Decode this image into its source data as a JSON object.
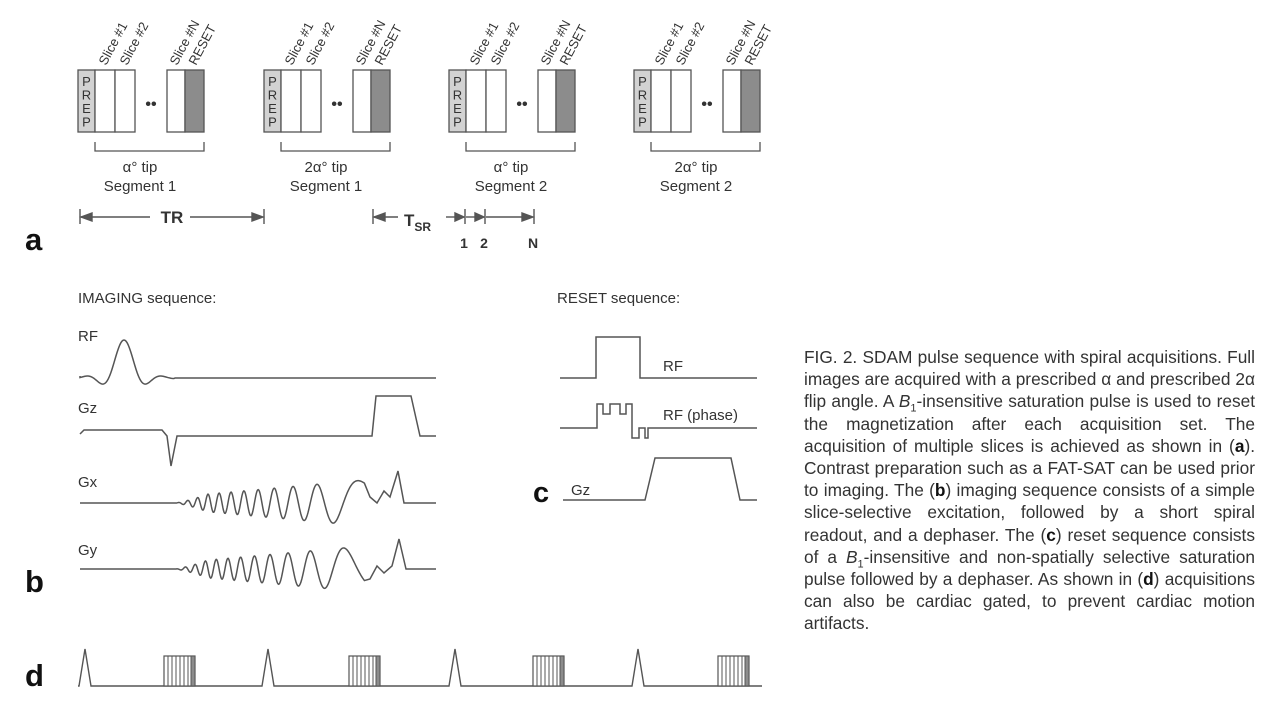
{
  "figure": {
    "panel_a": {
      "panel_label": "a",
      "groups": [
        {
          "prep": "PREP",
          "slices": [
            "Slice #1",
            "Slice #2",
            "Slice #N"
          ],
          "reset": "RESET",
          "tip": "α° tip",
          "segment": "Segment 1"
        },
        {
          "prep": "PREP",
          "slices": [
            "Slice #1",
            "Slice #2",
            "Slice #N"
          ],
          "reset": "RESET",
          "tip": "2α° tip",
          "segment": "Segment 1"
        },
        {
          "prep": "PREP",
          "slices": [
            "Slice #1",
            "Slice #2",
            "Slice #N"
          ],
          "reset": "RESET",
          "tip": "α° tip",
          "segment": "Segment 2"
        },
        {
          "prep": "PREP",
          "slices": [
            "Slice #1",
            "Slice #2",
            "Slice #N"
          ],
          "reset": "RESET",
          "tip": "2α° tip",
          "segment": "Segment 2"
        }
      ],
      "dots": "••",
      "tr_label": "TR",
      "tsr_label": "T",
      "tsr_subscript": "SR",
      "index_labels": [
        "1",
        "2",
        "N"
      ]
    },
    "panel_b": {
      "panel_label": "b",
      "title": "IMAGING sequence:",
      "waveform_labels": [
        "RF",
        "Gz",
        "Gx",
        "Gy"
      ]
    },
    "panel_c": {
      "panel_label": "c",
      "title": "RESET sequence:",
      "labels": {
        "rf": "RF",
        "rf_phase": "RF (phase)",
        "gz": "Gz"
      }
    },
    "panel_d": {
      "panel_label": "d"
    }
  },
  "caption": {
    "fig_label": "FIG. 2.",
    "segments": [
      {
        "t": "  SDAM pulse sequence with spiral acquisitions. Full images are acquired with a prescribed α and prescribed 2α flip angle. A ",
        "s": "n"
      },
      {
        "t": "B",
        "s": "i"
      },
      {
        "t": "1",
        "s": "sub"
      },
      {
        "t": "-insensitive saturation pulse is used to reset the magnetization after each acquisition set. The acquisition of multiple slices is achieved as shown in (",
        "s": "n"
      },
      {
        "t": "a",
        "s": "b"
      },
      {
        "t": "). Contrast preparation such as a FAT-SAT can be used prior to imaging. The (",
        "s": "n"
      },
      {
        "t": "b",
        "s": "b"
      },
      {
        "t": ") imaging sequence consists of a simple slice-selective excitation, followed by a short spiral readout, and a dephaser. The (",
        "s": "n"
      },
      {
        "t": "c",
        "s": "b"
      },
      {
        "t": ") reset sequence consists of a ",
        "s": "n"
      },
      {
        "t": "B",
        "s": "i"
      },
      {
        "t": "1",
        "s": "sub"
      },
      {
        "t": "-insensitive and non-spatially selective saturation pulse followed by a dephaser. As shown in (",
        "s": "n"
      },
      {
        "t": "d",
        "s": "b"
      },
      {
        "t": ") acquisitions can also be cardiac gated, to prevent cardiac motion artifacts.",
        "s": "n"
      }
    ]
  },
  "colors": {
    "line": "#555555",
    "prep_fill": "#d2d2d2",
    "reset_fill": "#8c8c8c",
    "text": "#333333"
  }
}
